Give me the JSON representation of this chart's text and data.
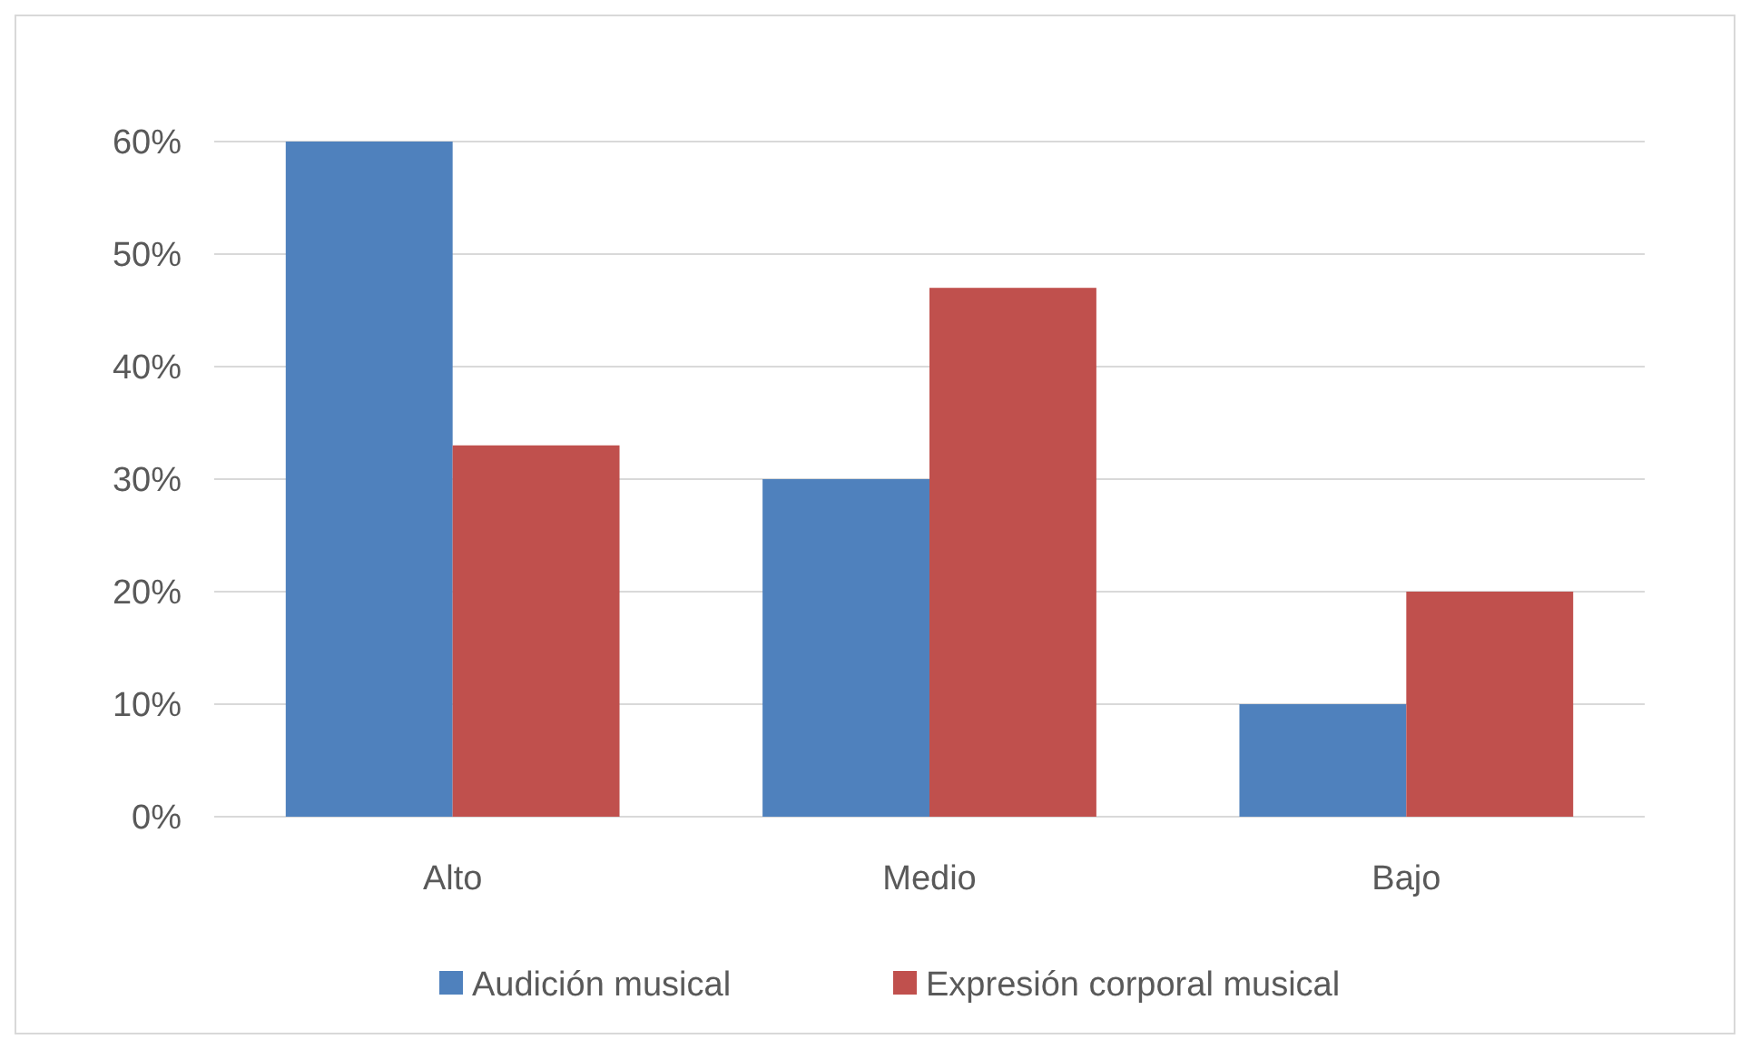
{
  "chart_data": {
    "type": "bar",
    "categories": [
      "Alto",
      "Medio",
      "Bajo"
    ],
    "series": [
      {
        "name": "Audición musical",
        "color": "#4f81bd",
        "values": [
          60,
          30,
          10
        ]
      },
      {
        "name": "Expresión corporal musical",
        "color": "#c0504d",
        "values": [
          33,
          47,
          20
        ]
      }
    ],
    "ylim": [
      0,
      60
    ],
    "yticks": [
      {
        "value": 0,
        "label": "0%"
      },
      {
        "value": 10,
        "label": "10%"
      },
      {
        "value": 20,
        "label": "20%"
      },
      {
        "value": 30,
        "label": "30%"
      },
      {
        "value": 40,
        "label": "40%"
      },
      {
        "value": 50,
        "label": "50%"
      },
      {
        "value": 60,
        "label": "60%"
      }
    ],
    "grid": "y",
    "legend": "bottom"
  }
}
